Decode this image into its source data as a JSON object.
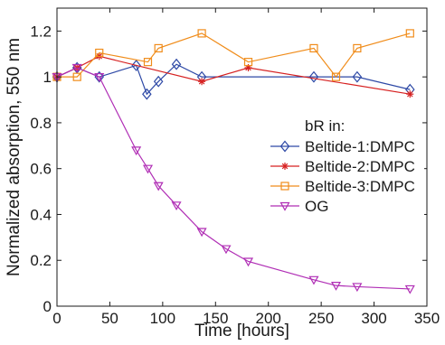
{
  "chart_data": {
    "type": "line",
    "title": "",
    "xlabel": "Time [hours]",
    "ylabel": "Normalized absorption, 550 nm",
    "xlim": [
      0,
      350
    ],
    "ylim": [
      0,
      1.3
    ],
    "xticks": [
      0,
      50,
      100,
      150,
      200,
      250,
      300,
      350
    ],
    "yticks": [
      0,
      0.2,
      0.4,
      0.6,
      0.8,
      1,
      1.2
    ],
    "xtick_labels": [
      "0",
      "50",
      "100",
      "150",
      "200",
      "250",
      "300",
      "350"
    ],
    "ytick_labels": [
      "0",
      "0.2",
      "0.4",
      "0.6",
      "0.8",
      "1",
      "1.2"
    ],
    "grid": false,
    "legend_title": "bR in:",
    "legend_position": "center-right",
    "series": [
      {
        "name": "Beltide-1:DMPC",
        "color": "#2e49a6",
        "marker": "diamond",
        "x": [
          0,
          19,
          40,
          75,
          85,
          96,
          113,
          137,
          243,
          284,
          334
        ],
        "y": [
          1.0,
          1.04,
          1.0,
          1.05,
          0.925,
          0.98,
          1.055,
          1.0,
          1.0,
          1.0,
          0.945
        ]
      },
      {
        "name": "Beltide-2:DMPC",
        "color": "#d62020",
        "marker": "star",
        "x": [
          0,
          19,
          40,
          137,
          181,
          334
        ],
        "y": [
          1.0,
          1.04,
          1.09,
          0.98,
          1.04,
          0.925
        ]
      },
      {
        "name": "Beltide-3:DMPC",
        "color": "#f08c1a",
        "marker": "square",
        "x": [
          0,
          19,
          40,
          86,
          96,
          137,
          181,
          243,
          264,
          284,
          334
        ],
        "y": [
          1.0,
          1.0,
          1.105,
          1.065,
          1.125,
          1.19,
          1.065,
          1.125,
          1.0,
          1.125,
          1.19
        ]
      },
      {
        "name": "OG",
        "color": "#b02eb5",
        "marker": "triangle-down",
        "x": [
          0,
          19,
          40,
          75,
          86,
          96,
          113,
          137,
          160,
          181,
          243,
          264,
          284,
          334
        ],
        "y": [
          1.0,
          1.04,
          1.0,
          0.68,
          0.6,
          0.525,
          0.44,
          0.325,
          0.25,
          0.195,
          0.115,
          0.09,
          0.085,
          0.075
        ]
      }
    ]
  }
}
